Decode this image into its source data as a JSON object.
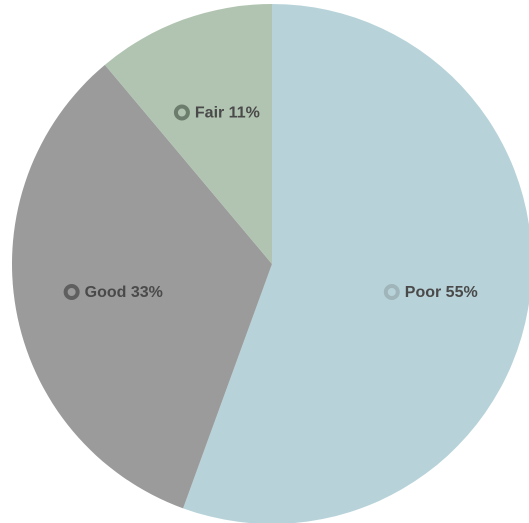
{
  "chart_data": {
    "type": "pie",
    "title": "",
    "start_angle_deg": 0,
    "direction": "clockwise",
    "legend": "none",
    "slices": [
      {
        "label": "Poor",
        "value": 55,
        "display": "Poor 55%",
        "color": "#b7d3d9",
        "marker_color": "#9fb5ba"
      },
      {
        "label": "Good",
        "value": 33,
        "display": "Good 33%",
        "color": "#9b9b9b",
        "marker_color": "#5f5f5f"
      },
      {
        "label": "Fair",
        "value": 11,
        "display": "Fair 11%",
        "color": "#b1c4b1",
        "marker_color": "#6d7d6d"
      }
    ]
  }
}
